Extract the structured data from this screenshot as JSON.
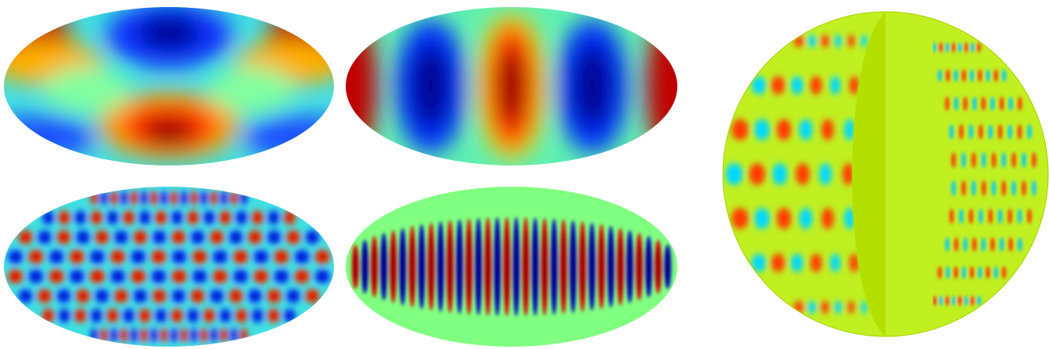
{
  "panels": [
    {
      "projection": "mollweide",
      "pattern": "low-order-zonal-harmonic"
    },
    {
      "projection": "mollweide",
      "pattern": "low-order-sectoral-harmonic"
    },
    {
      "projection": "mollweide",
      "pattern": "high-order-tesseral-harmonic"
    },
    {
      "projection": "mollweide",
      "pattern": "high-order-sectoral-harmonic"
    },
    {
      "projection": "orthographic-sphere-with-cutaway",
      "pattern": "3d-harmonic-slices"
    }
  ],
  "colormap": "jet",
  "colors": {
    "background": "#ffffff",
    "sphere_surface": "#c0f020",
    "sphere_cut_face": "#b4e000",
    "dark_red": "#800000",
    "red": "#ff2000",
    "orange": "#ff8000",
    "yellow": "#ffff00",
    "green": "#80ff80",
    "cyan": "#00ffff",
    "blue": "#0040ff",
    "dark_blue": "#00008f"
  }
}
